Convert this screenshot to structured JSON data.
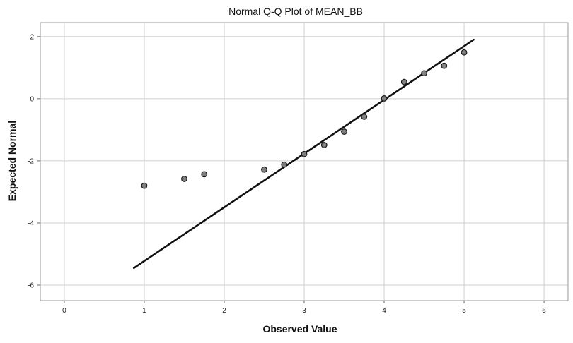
{
  "chart_data": {
    "type": "scatter",
    "title": "Normal Q-Q Plot of MEAN_BB",
    "xlabel": "Observed Value",
    "ylabel": "Expected Normal",
    "xlim": [
      -0.3,
      6.3
    ],
    "ylim": [
      -6.5,
      2.45
    ],
    "xticks": [
      0,
      1,
      2,
      3,
      4,
      5,
      6
    ],
    "yticks": [
      2,
      0,
      -2,
      -4,
      -6
    ],
    "grid": true,
    "series": [
      {
        "kind": "points",
        "x": [
          1,
          1.5,
          1.75,
          2.5,
          2.75,
          3,
          3.25,
          3.5,
          3.75,
          4,
          4.25,
          4.5,
          4.75,
          5
        ],
        "y": [
          -2.8,
          -2.58,
          -2.43,
          -2.28,
          -2.12,
          -1.78,
          -1.49,
          -1.06,
          -0.58,
          0.01,
          0.54,
          0.82,
          1.06,
          1.49
        ]
      },
      {
        "kind": "reference-line",
        "x": [
          0.87,
          5.12
        ],
        "y": [
          -5.45,
          1.9
        ]
      }
    ],
    "colors": {
      "points": "#7f7f7f",
      "point_stroke": "#1a1a1a",
      "line": "#111111",
      "grid": "#cfcfcf",
      "frame": "#999999"
    }
  }
}
